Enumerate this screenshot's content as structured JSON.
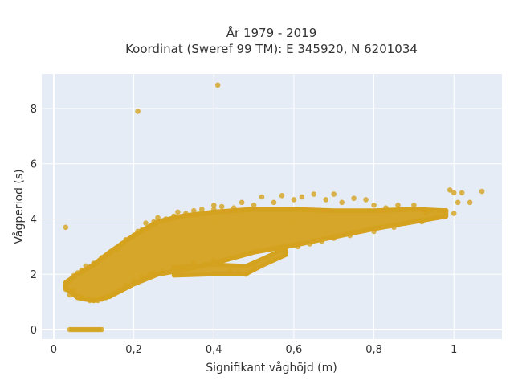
{
  "chart_data": {
    "type": "scatter",
    "title_lines": [
      "År 1979 - 2019",
      "Koordinat (Sweref 99 TM): E 345920, N 6201034"
    ],
    "xlabel": "Signifikant våghöjd (m)",
    "ylabel": "Vågperiod (s)",
    "xlim": [
      -0.03,
      1.12
    ],
    "ylim": [
      -0.35,
      9.25
    ],
    "x_ticks": [
      0,
      0.2,
      0.4,
      0.6,
      0.8,
      1
    ],
    "x_tick_labels": [
      "0",
      "0,2",
      "0,4",
      "0,6",
      "0,8",
      "1"
    ],
    "y_ticks": [
      0,
      2,
      4,
      6,
      8
    ],
    "y_tick_labels": [
      "0",
      "2",
      "4",
      "6",
      "8"
    ],
    "grid": true,
    "legend": "none",
    "marker_color": "#D4A21E",
    "plot_background": "#E5ECF6",
    "series": [
      {
        "values": [
          [
            0.03,
            1.55
          ],
          [
            0.03,
            1.62
          ],
          [
            0.03,
            1.45
          ],
          [
            0.04,
            1.25
          ],
          [
            0.04,
            1.75
          ],
          [
            0.05,
            1.4
          ],
          [
            0.05,
            1.95
          ],
          [
            0.06,
            1.2
          ],
          [
            0.06,
            2.05
          ],
          [
            0.07,
            1.15
          ],
          [
            0.07,
            2.15
          ],
          [
            0.08,
            1.1
          ],
          [
            0.08,
            2.3
          ],
          [
            0.09,
            1.05
          ],
          [
            0.1,
            1.05
          ],
          [
            0.1,
            2.4
          ],
          [
            0.11,
            1.05
          ],
          [
            0.12,
            1.1
          ],
          [
            0.12,
            2.6
          ],
          [
            0.13,
            1.15
          ],
          [
            0.14,
            1.2
          ],
          [
            0.14,
            2.75
          ],
          [
            0.15,
            1.3
          ],
          [
            0.16,
            1.4
          ],
          [
            0.16,
            2.9
          ],
          [
            0.17,
            3.1
          ],
          [
            0.18,
            1.6
          ],
          [
            0.18,
            3.25
          ],
          [
            0.2,
            1.75
          ],
          [
            0.2,
            3.4
          ],
          [
            0.21,
            3.55
          ],
          [
            0.22,
            1.9
          ],
          [
            0.22,
            3.6
          ],
          [
            0.23,
            3.85
          ],
          [
            0.24,
            2.0
          ],
          [
            0.25,
            2.05
          ],
          [
            0.25,
            3.9
          ],
          [
            0.26,
            4.05
          ],
          [
            0.27,
            2.1
          ],
          [
            0.28,
            4.0
          ],
          [
            0.3,
            2.25
          ],
          [
            0.3,
            4.1
          ],
          [
            0.31,
            4.25
          ],
          [
            0.32,
            2.25
          ],
          [
            0.33,
            4.2
          ],
          [
            0.35,
            2.4
          ],
          [
            0.35,
            4.3
          ],
          [
            0.37,
            4.35
          ],
          [
            0.38,
            2.35
          ],
          [
            0.4,
            2.5
          ],
          [
            0.4,
            4.35
          ],
          [
            0.4,
            4.5
          ],
          [
            0.42,
            2.45
          ],
          [
            0.42,
            4.45
          ],
          [
            0.44,
            2.1
          ],
          [
            0.45,
            4.4
          ],
          [
            0.46,
            2.05
          ],
          [
            0.47,
            4.6
          ],
          [
            0.48,
            2.0
          ],
          [
            0.5,
            2.3
          ],
          [
            0.5,
            4.5
          ],
          [
            0.52,
            4.8
          ],
          [
            0.54,
            2.45
          ],
          [
            0.55,
            4.6
          ],
          [
            0.57,
            4.85
          ],
          [
            0.58,
            2.8
          ],
          [
            0.6,
            4.7
          ],
          [
            0.61,
            3.0
          ],
          [
            0.62,
            4.8
          ],
          [
            0.64,
            3.1
          ],
          [
            0.65,
            4.9
          ],
          [
            0.67,
            3.2
          ],
          [
            0.68,
            4.7
          ],
          [
            0.7,
            3.3
          ],
          [
            0.7,
            4.9
          ],
          [
            0.72,
            4.6
          ],
          [
            0.74,
            3.4
          ],
          [
            0.75,
            4.75
          ],
          [
            0.78,
            4.7
          ],
          [
            0.8,
            3.55
          ],
          [
            0.8,
            4.5
          ],
          [
            0.83,
            4.4
          ],
          [
            0.85,
            3.7
          ],
          [
            0.86,
            4.5
          ],
          [
            0.88,
            3.85
          ],
          [
            0.9,
            4.5
          ],
          [
            0.92,
            3.9
          ],
          [
            0.93,
            4.2
          ],
          [
            0.96,
            4.1
          ],
          [
            0.98,
            4.3
          ],
          [
            0.99,
            5.05
          ],
          [
            1.0,
            4.95
          ],
          [
            1.0,
            4.2
          ],
          [
            1.01,
            4.6
          ],
          [
            1.02,
            4.95
          ],
          [
            1.04,
            4.6
          ],
          [
            1.07,
            5.0
          ],
          [
            0.03,
            3.7
          ],
          [
            0.21,
            7.9
          ],
          [
            0.41,
            8.85
          ],
          [
            0.04,
            0.0
          ],
          [
            0.045,
            0.0
          ],
          [
            0.05,
            0.0
          ],
          [
            0.055,
            0.0
          ],
          [
            0.06,
            0.0
          ],
          [
            0.065,
            0.0
          ],
          [
            0.07,
            0.0
          ],
          [
            0.075,
            0.0
          ],
          [
            0.08,
            0.0
          ],
          [
            0.085,
            0.0
          ],
          [
            0.09,
            0.0
          ],
          [
            0.095,
            0.0
          ],
          [
            0.1,
            0.0
          ],
          [
            0.105,
            0.0
          ],
          [
            0.11,
            0.0
          ],
          [
            0.115,
            0.0
          ],
          [
            0.12,
            0.0
          ]
        ]
      }
    ],
    "dense_band": {
      "lower": [
        [
          0.03,
          1.5
        ],
        [
          0.06,
          1.15
        ],
        [
          0.1,
          1.05
        ],
        [
          0.14,
          1.2
        ],
        [
          0.2,
          1.65
        ],
        [
          0.26,
          2.0
        ],
        [
          0.32,
          2.15
        ],
        [
          0.4,
          2.4
        ],
        [
          0.5,
          2.8
        ],
        [
          0.6,
          3.05
        ],
        [
          0.7,
          3.35
        ],
        [
          0.8,
          3.65
        ],
        [
          0.9,
          3.9
        ],
        [
          0.98,
          4.1
        ]
      ],
      "upper": [
        [
          0.98,
          4.3
        ],
        [
          0.9,
          4.35
        ],
        [
          0.8,
          4.3
        ],
        [
          0.7,
          4.3
        ],
        [
          0.6,
          4.35
        ],
        [
          0.5,
          4.35
        ],
        [
          0.4,
          4.25
        ],
        [
          0.32,
          4.1
        ],
        [
          0.26,
          3.9
        ],
        [
          0.2,
          3.4
        ],
        [
          0.14,
          2.8
        ],
        [
          0.1,
          2.35
        ],
        [
          0.06,
          2.0
        ],
        [
          0.03,
          1.7
        ]
      ],
      "arm_lower": [
        [
          0.3,
          1.95
        ],
        [
          0.4,
          2.0
        ],
        [
          0.48,
          2.0
        ],
        [
          0.52,
          2.3
        ],
        [
          0.58,
          2.7
        ]
      ],
      "arm_upper": [
        [
          0.58,
          2.95
        ],
        [
          0.52,
          2.55
        ],
        [
          0.48,
          2.3
        ],
        [
          0.4,
          2.35
        ],
        [
          0.3,
          2.25
        ]
      ]
    }
  }
}
